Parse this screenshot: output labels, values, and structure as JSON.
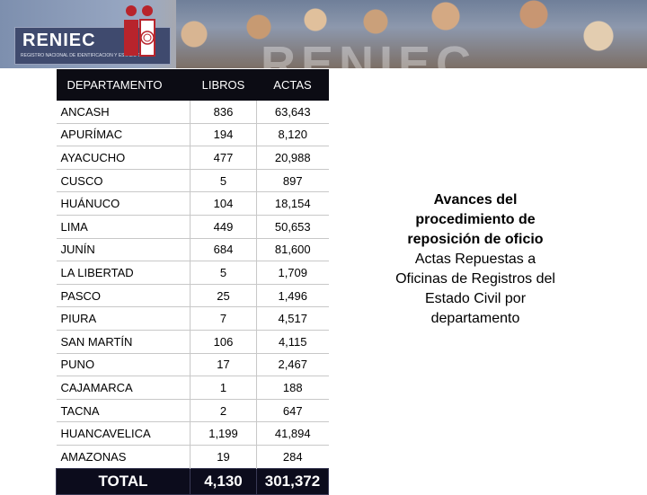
{
  "header": {
    "logo_text": "RENIEC",
    "logo_subtitle": "REGISTRO NACIONAL DE IDENTIFICACIÓN Y ESTADO CIVIL",
    "watermark_text": "RENIEC"
  },
  "table": {
    "columns": [
      "DEPARTAMENTO",
      "LIBROS",
      "ACTAS"
    ],
    "rows": [
      [
        "ANCASH",
        "836",
        "63,643"
      ],
      [
        "APURÍMAC",
        "194",
        "8,120"
      ],
      [
        "AYACUCHO",
        "477",
        "20,988"
      ],
      [
        "CUSCO",
        "5",
        "897"
      ],
      [
        "HUÁNUCO",
        "104",
        "18,154"
      ],
      [
        "LIMA",
        "449",
        "50,653"
      ],
      [
        "JUNÍN",
        "684",
        "81,600"
      ],
      [
        "LA LIBERTAD",
        "5",
        "1,709"
      ],
      [
        "PASCO",
        "25",
        "1,496"
      ],
      [
        "PIURA",
        "7",
        "4,517"
      ],
      [
        "SAN MARTÍN",
        "106",
        "4,115"
      ],
      [
        "PUNO",
        "17",
        "2,467"
      ],
      [
        "CAJAMARCA",
        "1",
        "188"
      ],
      [
        "TACNA",
        "2",
        "647"
      ],
      [
        "HUANCAVELICA",
        "1,199",
        "41,894"
      ],
      [
        "AMAZONAS",
        "19",
        "284"
      ]
    ],
    "total": [
      "TOTAL",
      "4,130",
      "301,372"
    ]
  },
  "caption": {
    "heading": "Avances del procedimiento de reposición de oficio",
    "body": "Actas Repuestas a Oficinas de Registros del Estado Civil por departamento"
  }
}
